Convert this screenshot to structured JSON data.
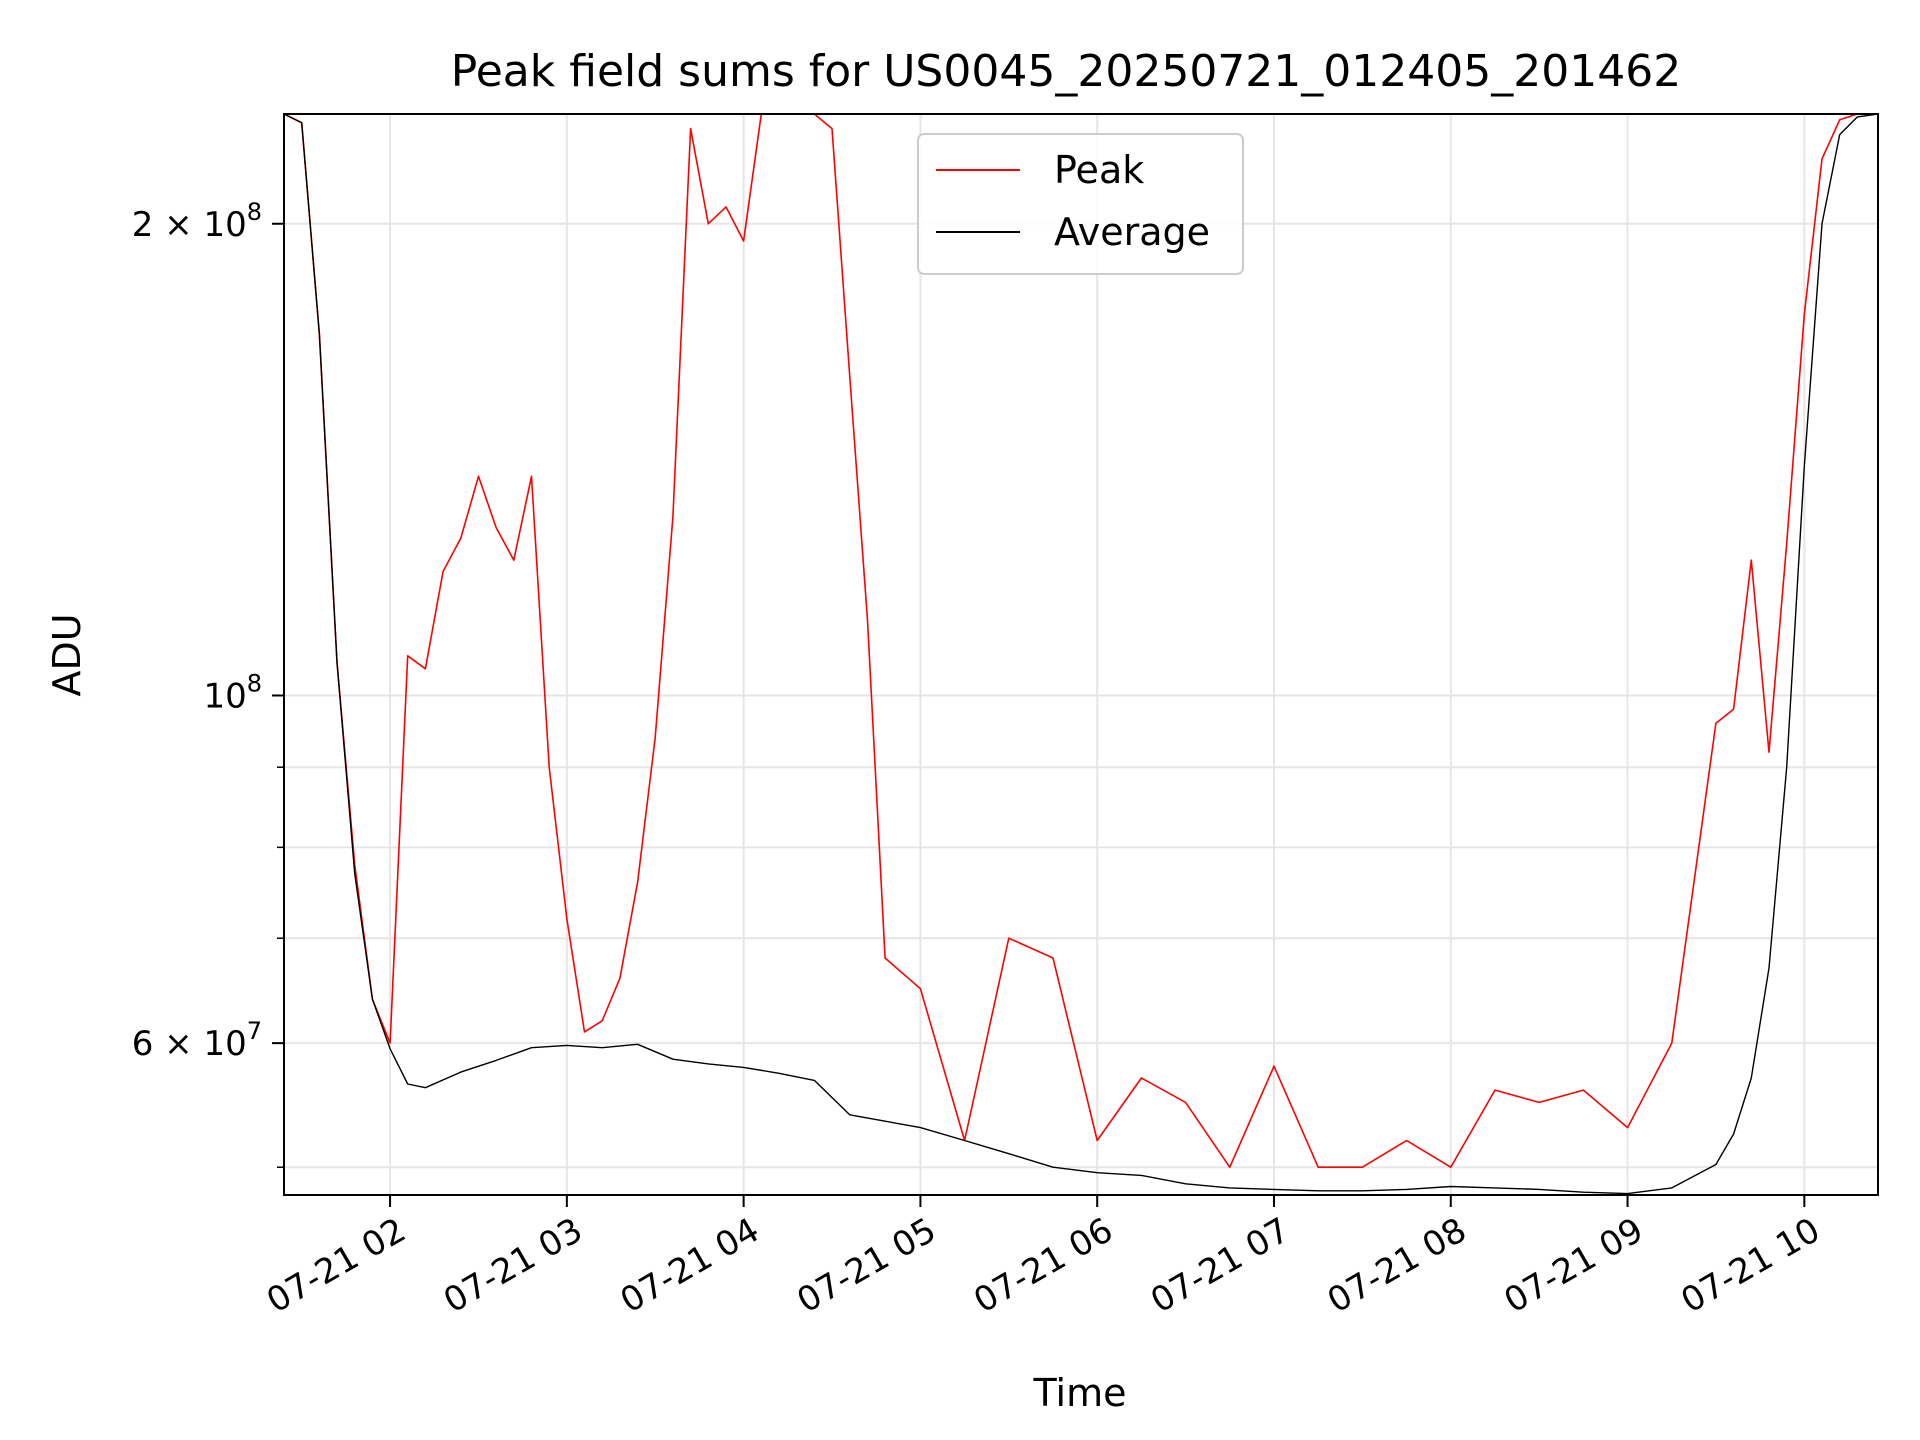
{
  "chart_data": {
    "type": "line",
    "title": "Peak field sums for US0045_20250721_012405_201462",
    "xlabel": "Time",
    "ylabel": "ADU",
    "yscale": "log",
    "grid": true,
    "legend_position": "top-center",
    "xlim": [
      "2025-07-21 01:24",
      "2025-07-21 10:25"
    ],
    "ylim": [
      48000000,
      235000000
    ],
    "x_ticks": [
      "07-21 02",
      "07-21 03",
      "07-21 04",
      "07-21 05",
      "07-21 06",
      "07-21 07",
      "07-21 08",
      "07-21 09",
      "07-21 10"
    ],
    "y_tick_labels": [
      {
        "value": 200000000,
        "base": "2 × 10",
        "exp": "8"
      },
      {
        "value": 100000000,
        "base": "10",
        "exp": "8"
      },
      {
        "value": 60000000,
        "base": "6 × 10",
        "exp": "7"
      }
    ],
    "y_minor_ticks": [
      50000000,
      70000000,
      80000000,
      90000000
    ],
    "series": [
      {
        "name": "Peak",
        "color": "#ff0000",
        "x": [
          "2025-07-21 01:24",
          "2025-07-21 01:30",
          "2025-07-21 01:36",
          "2025-07-21 01:42",
          "2025-07-21 01:48",
          "2025-07-21 01:54",
          "2025-07-21 02:00",
          "2025-07-21 02:06",
          "2025-07-21 02:12",
          "2025-07-21 02:18",
          "2025-07-21 02:24",
          "2025-07-21 02:30",
          "2025-07-21 02:36",
          "2025-07-21 02:42",
          "2025-07-21 02:48",
          "2025-07-21 02:54",
          "2025-07-21 03:00",
          "2025-07-21 03:06",
          "2025-07-21 03:12",
          "2025-07-21 03:18",
          "2025-07-21 03:24",
          "2025-07-21 03:30",
          "2025-07-21 03:36",
          "2025-07-21 03:42",
          "2025-07-21 03:48",
          "2025-07-21 03:54",
          "2025-07-21 04:00",
          "2025-07-21 04:06",
          "2025-07-21 04:12",
          "2025-07-21 04:18",
          "2025-07-21 04:24",
          "2025-07-21 04:30",
          "2025-07-21 04:36",
          "2025-07-21 04:42",
          "2025-07-21 04:48",
          "2025-07-21 05:00",
          "2025-07-21 05:15",
          "2025-07-21 05:30",
          "2025-07-21 05:45",
          "2025-07-21 06:00",
          "2025-07-21 06:15",
          "2025-07-21 06:30",
          "2025-07-21 06:45",
          "2025-07-21 07:00",
          "2025-07-21 07:15",
          "2025-07-21 07:30",
          "2025-07-21 07:45",
          "2025-07-21 08:00",
          "2025-07-21 08:15",
          "2025-07-21 08:30",
          "2025-07-21 08:45",
          "2025-07-21 09:00",
          "2025-07-21 09:15",
          "2025-07-21 09:30",
          "2025-07-21 09:36",
          "2025-07-21 09:42",
          "2025-07-21 09:48",
          "2025-07-21 09:54",
          "2025-07-21 10:00",
          "2025-07-21 10:06",
          "2025-07-21 10:12",
          "2025-07-21 10:18",
          "2025-07-21 10:25"
        ],
        "y": [
          235000000,
          232000000,
          170000000,
          105000000,
          78000000,
          64000000,
          60000000,
          106000000,
          104000000,
          120000000,
          126000000,
          138000000,
          128000000,
          122000000,
          138000000,
          90000000,
          72000000,
          61000000,
          62000000,
          66000000,
          76000000,
          94000000,
          130000000,
          230000000,
          200000000,
          205000000,
          195000000,
          235000000,
          235000000,
          235000000,
          235000000,
          230000000,
          160000000,
          112000000,
          68000000,
          65000000,
          52000000,
          70000000,
          68000000,
          52000000,
          57000000,
          55000000,
          50000000,
          58000000,
          50000000,
          50000000,
          52000000,
          50000000,
          56000000,
          55000000,
          56000000,
          53000000,
          60000000,
          96000000,
          98000000,
          122000000,
          92000000,
          125000000,
          175000000,
          220000000,
          233000000,
          235000000,
          235000000
        ]
      },
      {
        "name": "Average",
        "color": "#000000",
        "x": [
          "2025-07-21 01:24",
          "2025-07-21 01:30",
          "2025-07-21 01:36",
          "2025-07-21 01:42",
          "2025-07-21 01:48",
          "2025-07-21 01:54",
          "2025-07-21 02:00",
          "2025-07-21 02:06",
          "2025-07-21 02:12",
          "2025-07-21 02:24",
          "2025-07-21 02:36",
          "2025-07-21 02:48",
          "2025-07-21 03:00",
          "2025-07-21 03:12",
          "2025-07-21 03:24",
          "2025-07-21 03:36",
          "2025-07-21 03:48",
          "2025-07-21 04:00",
          "2025-07-21 04:12",
          "2025-07-21 04:24",
          "2025-07-21 04:36",
          "2025-07-21 04:48",
          "2025-07-21 05:00",
          "2025-07-21 05:15",
          "2025-07-21 05:30",
          "2025-07-21 05:45",
          "2025-07-21 06:00",
          "2025-07-21 06:15",
          "2025-07-21 06:30",
          "2025-07-21 06:45",
          "2025-07-21 07:00",
          "2025-07-21 07:15",
          "2025-07-21 07:30",
          "2025-07-21 07:45",
          "2025-07-21 08:00",
          "2025-07-21 08:15",
          "2025-07-21 08:30",
          "2025-07-21 08:45",
          "2025-07-21 09:00",
          "2025-07-21 09:15",
          "2025-07-21 09:30",
          "2025-07-21 09:36",
          "2025-07-21 09:42",
          "2025-07-21 09:48",
          "2025-07-21 09:54",
          "2025-07-21 10:00",
          "2025-07-21 10:06",
          "2025-07-21 10:12",
          "2025-07-21 10:18",
          "2025-07-21 10:25"
        ],
        "y": [
          235000000,
          232000000,
          170000000,
          105000000,
          77000000,
          64000000,
          59500000,
          56500000,
          56200000,
          57500000,
          58500000,
          59600000,
          59800000,
          59600000,
          59900000,
          58600000,
          58200000,
          57900000,
          57400000,
          56800000,
          54000000,
          53500000,
          53000000,
          52000000,
          51000000,
          50000000,
          49600000,
          49400000,
          48800000,
          48500000,
          48400000,
          48300000,
          48300000,
          48400000,
          48600000,
          48500000,
          48400000,
          48200000,
          48100000,
          48500000,
          50200000,
          52500000,
          57000000,
          67000000,
          90000000,
          140000000,
          200000000,
          228000000,
          234000000,
          235000000
        ]
      }
    ]
  }
}
